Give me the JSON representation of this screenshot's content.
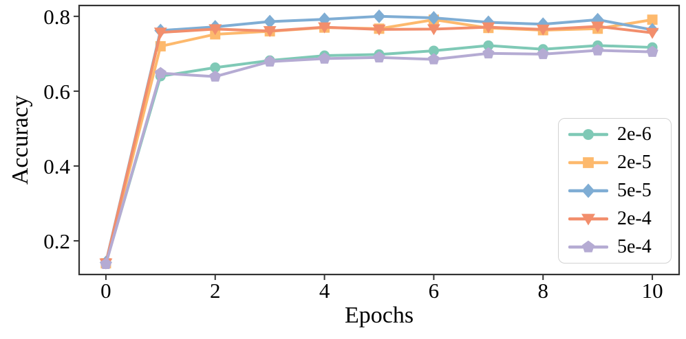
{
  "chart_data": {
    "type": "line",
    "title": "",
    "xlabel": "Epochs",
    "ylabel": "Accuracy",
    "x": [
      0,
      1,
      2,
      3,
      4,
      5,
      6,
      7,
      8,
      9,
      10
    ],
    "xlim": [
      -0.49,
      10.49
    ],
    "ylim": [
      0.11,
      0.829
    ],
    "xticks": {
      "values": [
        0,
        2,
        4,
        6,
        8,
        10
      ],
      "labels": [
        "0",
        "2",
        "4",
        "6",
        "8",
        "10"
      ]
    },
    "yticks": {
      "values": [
        0.2,
        0.4,
        0.6,
        0.8
      ],
      "labels": [
        "0.2",
        "0.4",
        "0.6",
        "0.8"
      ]
    },
    "grid": false,
    "legend_position": "lower right",
    "axis_color": "#333333",
    "text_color": "#000000",
    "figure_bg": "#ffffff",
    "line_width": 4,
    "series": [
      {
        "name": "2e-6",
        "marker": "circle",
        "color": "#7fc9b6",
        "values": [
          0.14,
          0.64,
          0.663,
          0.682,
          0.695,
          0.698,
          0.708,
          0.722,
          0.712,
          0.722,
          0.717
        ]
      },
      {
        "name": "2e-5",
        "marker": "square",
        "color": "#fdb96d",
        "values": [
          0.14,
          0.72,
          0.752,
          0.76,
          0.77,
          0.767,
          0.791,
          0.769,
          0.763,
          0.767,
          0.791
        ]
      },
      {
        "name": "5e-5",
        "marker": "diamond",
        "color": "#7fadd4",
        "values": [
          0.142,
          0.762,
          0.772,
          0.786,
          0.792,
          0.8,
          0.796,
          0.784,
          0.779,
          0.791,
          0.764
        ]
      },
      {
        "name": "2e-4",
        "marker": "triangle-down",
        "color": "#f28e6c",
        "values": [
          0.14,
          0.757,
          0.766,
          0.761,
          0.771,
          0.765,
          0.766,
          0.771,
          0.765,
          0.773,
          0.756
        ]
      },
      {
        "name": "5e-4",
        "marker": "pentagon",
        "color": "#b5abd3",
        "values": [
          0.138,
          0.648,
          0.639,
          0.679,
          0.687,
          0.69,
          0.685,
          0.701,
          0.699,
          0.709,
          0.705
        ]
      }
    ]
  }
}
